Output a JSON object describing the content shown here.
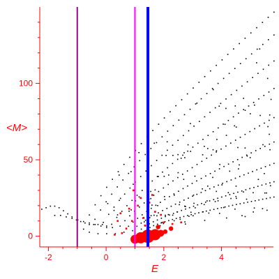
{
  "chart_data": {
    "type": "scatter",
    "title": "",
    "xlabel": "E",
    "ylabel": "<M>",
    "xlim": [
      -2.3,
      5.8
    ],
    "ylim": [
      -7,
      150
    ],
    "xticks": [
      -2,
      0,
      2,
      4
    ],
    "yticks": [
      0,
      50,
      100
    ],
    "grid": false,
    "legend": "none",
    "colors": {
      "axis": "#ff0000",
      "tick_label": "#ff0000",
      "black_points": "#000000",
      "red_points": "#ff0000",
      "line_blue": "#0000ff",
      "line_magenta": "#ff00ff",
      "line_purple": "#a0008a"
    },
    "vertical_lines": [
      {
        "x": -1.0,
        "color": "#a0008a",
        "style": "thin"
      },
      {
        "x": 1.0,
        "color": "#ff00ff",
        "style": "thin"
      },
      {
        "x": 1.45,
        "color": "#0000ff",
        "style": "thick"
      }
    ],
    "bands": [
      {
        "x0": -0.8,
        "x1": 5.8,
        "y0": 5,
        "y1": 147
      },
      {
        "x0": -0.6,
        "x1": 5.8,
        "y0": 3,
        "y1": 132
      },
      {
        "x0": -0.3,
        "x1": 5.8,
        "y0": 2,
        "y1": 115
      },
      {
        "x0": 0.0,
        "x1": 5.8,
        "y0": 2,
        "y1": 97
      },
      {
        "x0": 0.3,
        "x1": 5.8,
        "y0": 2,
        "y1": 78
      },
      {
        "x0": 0.6,
        "x1": 5.8,
        "y0": 3,
        "y1": 62
      },
      {
        "x0": 0.9,
        "x1": 5.8,
        "y0": 4,
        "y1": 48
      },
      {
        "x0": 1.2,
        "x1": 5.8,
        "y0": 5,
        "y1": 36
      },
      {
        "x0": 1.5,
        "x1": 5.8,
        "y0": 6,
        "y1": 26
      }
    ],
    "left_tail_points": [
      [
        -2.25,
        18
      ],
      [
        -2.1,
        19
      ],
      [
        -1.95,
        20
      ],
      [
        -1.8,
        20
      ],
      [
        -1.65,
        19
      ],
      [
        -1.5,
        17
      ],
      [
        -1.35,
        15
      ],
      [
        -1.2,
        13
      ],
      [
        -1.05,
        11
      ],
      [
        -0.9,
        10
      ],
      [
        -0.75,
        9
      ],
      [
        -0.6,
        8
      ],
      [
        -0.45,
        8
      ],
      [
        -0.3,
        8
      ],
      [
        -0.15,
        8
      ],
      [
        0.0,
        7
      ],
      [
        -1.8,
        14
      ],
      [
        -1.6,
        14
      ],
      [
        -1.4,
        13
      ],
      [
        -1.2,
        12
      ],
      [
        -1.0,
        11
      ],
      [
        -0.8,
        10
      ],
      [
        -0.6,
        9
      ],
      [
        -0.4,
        8
      ],
      [
        -0.2,
        7
      ],
      [
        0.0,
        6
      ],
      [
        0.2,
        6
      ]
    ],
    "red_points": [
      [
        0.5,
        15,
        1
      ],
      [
        0.8,
        18,
        1
      ],
      [
        1.1,
        20,
        1
      ],
      [
        1.5,
        22,
        1
      ],
      [
        1.7,
        16,
        1
      ],
      [
        0.9,
        10,
        1
      ],
      [
        1.3,
        12,
        1
      ],
      [
        2.0,
        9,
        1
      ],
      [
        2.3,
        8,
        1
      ],
      [
        0.7,
        5,
        1
      ],
      [
        1.2,
        25,
        1
      ],
      [
        1.6,
        27,
        1
      ],
      [
        1.9,
        14,
        1
      ],
      [
        0.55,
        2,
        1
      ],
      [
        0.4,
        10,
        1
      ],
      [
        1.35,
        7,
        1
      ],
      [
        0.95,
        30,
        1
      ],
      [
        1.8,
        6,
        2
      ],
      [
        2.25,
        5,
        2
      ],
      [
        2.6,
        9,
        1
      ],
      [
        1.0,
        -2,
        4
      ],
      [
        1.2,
        -1,
        5
      ],
      [
        1.45,
        0,
        6
      ],
      [
        1.7,
        1,
        5
      ],
      [
        1.9,
        2,
        3
      ],
      [
        0.3,
        1,
        1
      ],
      [
        2.05,
        3,
        2
      ]
    ]
  }
}
